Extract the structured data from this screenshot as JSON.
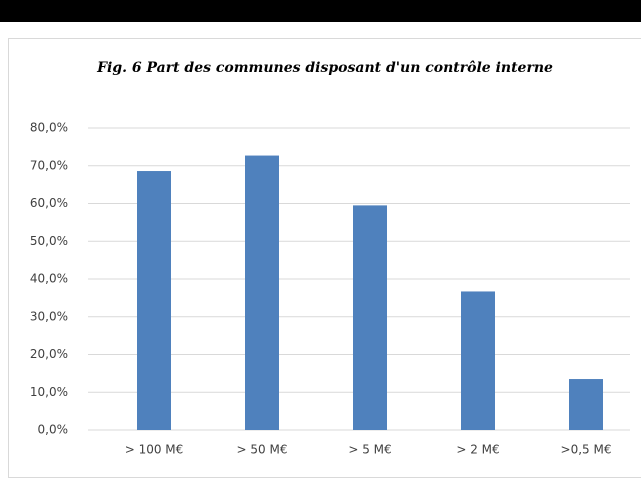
{
  "chart_data": {
    "type": "bar",
    "title": "Fig. 6 Part des communes disposant d'un contrôle interne",
    "categories": [
      "> 100 M€",
      "> 50 M€",
      "> 5 M€",
      "> 2 M€",
      ">0,5 M€"
    ],
    "values": [
      68.6,
      72.7,
      59.5,
      36.7,
      13.5
    ],
    "color": "#4f81bd",
    "ylim": [
      0,
      80
    ],
    "yticks": [
      {
        "value": 0,
        "label": "0,0%"
      },
      {
        "value": 10,
        "label": "10,0%"
      },
      {
        "value": 20,
        "label": "20,0%"
      },
      {
        "value": 30,
        "label": "30,0%"
      },
      {
        "value": 40,
        "label": "40,0%"
      },
      {
        "value": 50,
        "label": "50,0%"
      },
      {
        "value": 60,
        "label": "60,0%"
      },
      {
        "value": 70,
        "label": "70,0%"
      },
      {
        "value": 80,
        "label": "80,0%"
      }
    ],
    "grid": true
  }
}
